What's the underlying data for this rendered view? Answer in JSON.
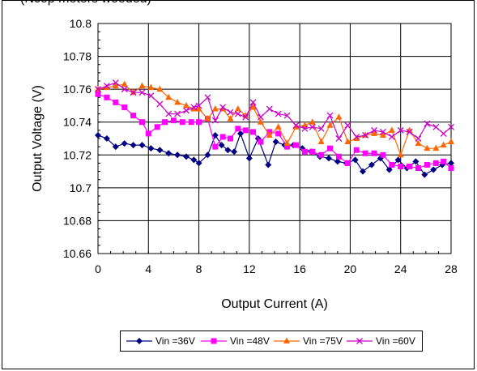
{
  "top_note": "(Ncop meters wooded)",
  "chart_data": {
    "type": "line",
    "title": "",
    "xlabel": "Output Current (A)",
    "ylabel": "Output Voltage (V)",
    "xlim": [
      0,
      28
    ],
    "ylim": [
      10.66,
      10.8
    ],
    "x_ticks": [
      "0",
      "4",
      "8",
      "12",
      "16",
      "20",
      "24",
      "28"
    ],
    "y_ticks": [
      "10.66",
      "10.68",
      "10.7",
      "10.72",
      "10.74",
      "10.76",
      "10.78",
      "10.8"
    ],
    "grid": true,
    "legend_position": "bottom",
    "series": [
      {
        "name": "Vin =36V",
        "color": "#000080",
        "marker": "diamond",
        "points": [
          [
            0,
            10.732
          ],
          [
            0.7,
            10.73
          ],
          [
            1.4,
            10.725
          ],
          [
            2.1,
            10.727
          ],
          [
            2.8,
            10.726
          ],
          [
            3.5,
            10.726
          ],
          [
            4.2,
            10.724
          ],
          [
            4.9,
            10.723
          ],
          [
            5.6,
            10.721
          ],
          [
            6.3,
            10.72
          ],
          [
            7.0,
            10.719
          ],
          [
            7.6,
            10.717
          ],
          [
            8.0,
            10.715
          ],
          [
            8.7,
            10.72
          ],
          [
            9.3,
            10.732
          ],
          [
            9.8,
            10.726
          ],
          [
            10.3,
            10.723
          ],
          [
            10.8,
            10.722
          ],
          [
            11.3,
            10.733
          ],
          [
            12.0,
            10.718
          ],
          [
            12.7,
            10.73
          ],
          [
            13.5,
            10.714
          ],
          [
            14.1,
            10.728
          ],
          [
            14.8,
            10.726
          ],
          [
            15.5,
            10.726
          ],
          [
            16.2,
            10.724
          ],
          [
            16.9,
            10.722
          ],
          [
            17.6,
            10.719
          ],
          [
            18.3,
            10.718
          ],
          [
            19.0,
            10.716
          ],
          [
            19.7,
            10.715
          ],
          [
            20.4,
            10.717
          ],
          [
            21.0,
            10.71
          ],
          [
            21.7,
            10.714
          ],
          [
            22.4,
            10.718
          ],
          [
            23.1,
            10.711
          ],
          [
            23.8,
            10.717
          ],
          [
            24.5,
            10.712
          ],
          [
            25.2,
            10.716
          ],
          [
            25.9,
            10.708
          ],
          [
            26.6,
            10.711
          ],
          [
            27.3,
            10.714
          ],
          [
            28.0,
            10.715
          ]
        ]
      },
      {
        "name": "Vin =48V",
        "color": "#FF00FF",
        "marker": "square",
        "points": [
          [
            0,
            10.757
          ],
          [
            0.7,
            10.755
          ],
          [
            1.4,
            10.752
          ],
          [
            2.1,
            10.749
          ],
          [
            2.8,
            10.744
          ],
          [
            3.5,
            10.74
          ],
          [
            4.0,
            10.733
          ],
          [
            4.7,
            10.737
          ],
          [
            5.3,
            10.74
          ],
          [
            6.0,
            10.741
          ],
          [
            6.7,
            10.74
          ],
          [
            7.4,
            10.74
          ],
          [
            8.0,
            10.74
          ],
          [
            8.7,
            10.742
          ],
          [
            9.3,
            10.725
          ],
          [
            9.9,
            10.731
          ],
          [
            10.5,
            10.73
          ],
          [
            11.1,
            10.736
          ],
          [
            11.7,
            10.735
          ],
          [
            12.3,
            10.734
          ],
          [
            12.9,
            10.728
          ],
          [
            13.6,
            10.734
          ],
          [
            14.3,
            10.733
          ],
          [
            15.0,
            10.725
          ],
          [
            15.7,
            10.726
          ],
          [
            16.4,
            10.722
          ],
          [
            17.0,
            10.722
          ],
          [
            17.7,
            10.72
          ],
          [
            18.4,
            10.724
          ],
          [
            19.1,
            10.719
          ],
          [
            19.8,
            10.715
          ],
          [
            20.5,
            10.723
          ],
          [
            21.2,
            10.721
          ],
          [
            21.9,
            10.721
          ],
          [
            22.6,
            10.72
          ],
          [
            23.3,
            10.714
          ],
          [
            24.0,
            10.713
          ],
          [
            24.7,
            10.713
          ],
          [
            25.4,
            10.712
          ],
          [
            26.1,
            10.714
          ],
          [
            26.8,
            10.715
          ],
          [
            27.4,
            10.716
          ],
          [
            28.0,
            10.712
          ]
        ]
      },
      {
        "name": "Vin =75V",
        "color": "#FF6600",
        "marker": "triangle",
        "points": [
          [
            0,
            10.76
          ],
          [
            0.7,
            10.761
          ],
          [
            1.4,
            10.762
          ],
          [
            2.1,
            10.763
          ],
          [
            2.8,
            10.758
          ],
          [
            3.5,
            10.762
          ],
          [
            4.2,
            10.761
          ],
          [
            4.9,
            10.76
          ],
          [
            5.6,
            10.755
          ],
          [
            6.3,
            10.752
          ],
          [
            7.0,
            10.75
          ],
          [
            7.6,
            10.748
          ],
          [
            8.0,
            10.748
          ],
          [
            8.7,
            10.742
          ],
          [
            9.3,
            10.748
          ],
          [
            9.9,
            10.748
          ],
          [
            10.5,
            10.742
          ],
          [
            11.1,
            10.748
          ],
          [
            11.7,
            10.744
          ],
          [
            12.3,
            10.749
          ],
          [
            12.9,
            10.74
          ],
          [
            13.6,
            10.732
          ],
          [
            14.3,
            10.737
          ],
          [
            15.0,
            10.727
          ],
          [
            15.7,
            10.737
          ],
          [
            16.4,
            10.738
          ],
          [
            17.0,
            10.74
          ],
          [
            17.7,
            10.728
          ],
          [
            18.4,
            10.738
          ],
          [
            19.1,
            10.743
          ],
          [
            19.8,
            10.728
          ],
          [
            20.5,
            10.73
          ],
          [
            21.2,
            10.732
          ],
          [
            21.9,
            10.733
          ],
          [
            22.6,
            10.732
          ],
          [
            23.3,
            10.735
          ],
          [
            24.0,
            10.72
          ],
          [
            24.7,
            10.735
          ],
          [
            25.4,
            10.727
          ],
          [
            26.1,
            10.724
          ],
          [
            26.8,
            10.724
          ],
          [
            27.4,
            10.726
          ],
          [
            28.0,
            10.728
          ]
        ]
      },
      {
        "name": "Vin =60V",
        "color": "#CC00CC",
        "marker": "x",
        "points": [
          [
            0,
            10.76
          ],
          [
            0.7,
            10.762
          ],
          [
            1.4,
            10.764
          ],
          [
            2.1,
            10.76
          ],
          [
            2.8,
            10.758
          ],
          [
            3.5,
            10.758
          ],
          [
            4.2,
            10.756
          ],
          [
            4.9,
            10.751
          ],
          [
            5.6,
            10.745
          ],
          [
            6.3,
            10.745
          ],
          [
            7.0,
            10.747
          ],
          [
            7.6,
            10.749
          ],
          [
            8.0,
            10.75
          ],
          [
            8.7,
            10.755
          ],
          [
            9.3,
            10.741
          ],
          [
            9.9,
            10.749
          ],
          [
            10.5,
            10.746
          ],
          [
            11.1,
            10.745
          ],
          [
            11.7,
            10.743
          ],
          [
            12.3,
            10.752
          ],
          [
            12.9,
            10.743
          ],
          [
            13.6,
            10.748
          ],
          [
            14.3,
            10.745
          ],
          [
            15.0,
            10.744
          ],
          [
            15.7,
            10.738
          ],
          [
            16.4,
            10.736
          ],
          [
            17.0,
            10.737
          ],
          [
            17.7,
            10.736
          ],
          [
            18.4,
            10.744
          ],
          [
            19.1,
            10.73
          ],
          [
            19.8,
            10.738
          ],
          [
            20.5,
            10.731
          ],
          [
            21.2,
            10.732
          ],
          [
            21.9,
            10.735
          ],
          [
            22.6,
            10.734
          ],
          [
            23.3,
            10.731
          ],
          [
            24.0,
            10.735
          ],
          [
            24.7,
            10.734
          ],
          [
            25.4,
            10.73
          ],
          [
            26.1,
            10.739
          ],
          [
            26.8,
            10.737
          ],
          [
            27.4,
            10.733
          ],
          [
            28.0,
            10.737
          ]
        ]
      }
    ]
  }
}
